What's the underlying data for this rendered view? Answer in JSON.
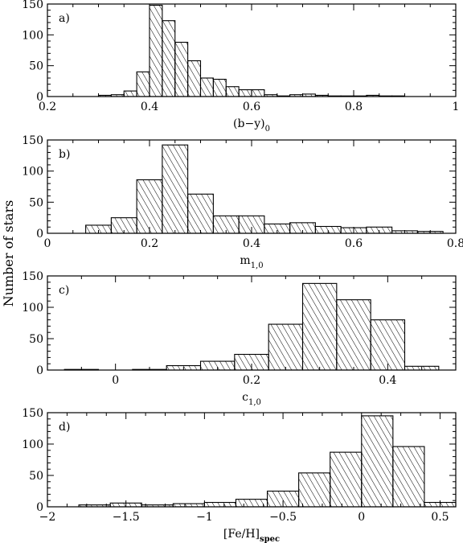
{
  "ylabel": "Number of stars",
  "chart_data": [
    {
      "type": "bar",
      "panel_label": "a)",
      "xlabel": "(b−y)",
      "xlabel_sub": "0",
      "xlim": [
        0.2,
        1.0
      ],
      "ylim": [
        0,
        150
      ],
      "xticks": [
        0.2,
        0.4,
        0.6,
        0.8,
        1.0
      ],
      "xtick_labels": [
        "0.2",
        "0.4",
        "0.6",
        "0.8",
        "1"
      ],
      "yticks": [
        0,
        50,
        100,
        150
      ],
      "ytick_labels": [
        "0",
        "50",
        "100",
        "150"
      ],
      "bin_width": 0.025,
      "bin_starts": [
        0.3,
        0.325,
        0.35,
        0.375,
        0.4,
        0.425,
        0.45,
        0.475,
        0.5,
        0.525,
        0.55,
        0.575,
        0.6,
        0.625,
        0.65,
        0.675,
        0.7,
        0.725,
        0.75,
        0.775,
        0.8,
        0.825,
        0.85,
        0.875
      ],
      "values": [
        2,
        3,
        9,
        40,
        148,
        123,
        88,
        58,
        30,
        28,
        16,
        11,
        11,
        3,
        1,
        3,
        4,
        2,
        1,
        1,
        1,
        2,
        1,
        1
      ]
    },
    {
      "type": "bar",
      "panel_label": "b)",
      "xlabel": "m",
      "xlabel_sub": "1,0",
      "xlim": [
        0.0,
        0.8
      ],
      "ylim": [
        0,
        150
      ],
      "xticks": [
        0.0,
        0.2,
        0.4,
        0.6,
        0.8
      ],
      "xtick_labels": [
        "0",
        "0.2",
        "0.4",
        "0.6",
        "0.8"
      ],
      "yticks": [
        0,
        50,
        100,
        150
      ],
      "ytick_labels": [
        "0",
        "50",
        "100",
        "150"
      ],
      "bin_width": 0.05,
      "bin_starts": [
        0.075,
        0.125,
        0.175,
        0.225,
        0.275,
        0.325,
        0.375,
        0.425,
        0.475,
        0.525,
        0.575,
        0.625,
        0.675,
        0.725
      ],
      "values": [
        13,
        25,
        86,
        142,
        63,
        28,
        28,
        15,
        17,
        11,
        9,
        10,
        4,
        3
      ]
    },
    {
      "type": "bar",
      "panel_label": "c)",
      "xlabel": "c",
      "xlabel_sub": "1,0",
      "xlim": [
        -0.1,
        0.5
      ],
      "ylim": [
        0,
        150
      ],
      "xticks": [
        0.0,
        0.2,
        0.4
      ],
      "xtick_labels": [
        "0",
        "0.2",
        "0.4"
      ],
      "yticks": [
        0,
        50,
        100,
        150
      ],
      "ytick_labels": [
        "0",
        "50",
        "100",
        "150"
      ],
      "bin_width": 0.05,
      "bin_starts": [
        -0.075,
        -0.025,
        0.025,
        0.075,
        0.125,
        0.175,
        0.225,
        0.275,
        0.325,
        0.375,
        0.425
      ],
      "values": [
        1,
        0,
        1,
        7,
        14,
        25,
        73,
        138,
        112,
        80,
        6
      ]
    },
    {
      "type": "bar",
      "panel_label": "d)",
      "xlabel": "[Fe/H]",
      "xlabel_sub": "spec",
      "xlim": [
        -2.0,
        0.6
      ],
      "ylim": [
        0,
        150
      ],
      "xticks": [
        -2.0,
        -1.5,
        -1.0,
        -0.5,
        0.0,
        0.5
      ],
      "xtick_labels": [
        "−2",
        "−1.5",
        "−1",
        "−0.5",
        "0",
        "0.5"
      ],
      "yticks": [
        0,
        50,
        100,
        150
      ],
      "ytick_labels": [
        "0",
        "50",
        "100",
        "150"
      ],
      "bin_width": 0.2,
      "bin_starts": [
        -1.8,
        -1.6,
        -1.4,
        -1.2,
        -1.0,
        -0.8,
        -0.6,
        -0.4,
        -0.2,
        0.0,
        0.2,
        0.4
      ],
      "values": [
        3,
        6,
        3,
        5,
        7,
        12,
        25,
        54,
        87,
        145,
        96,
        7
      ]
    }
  ]
}
